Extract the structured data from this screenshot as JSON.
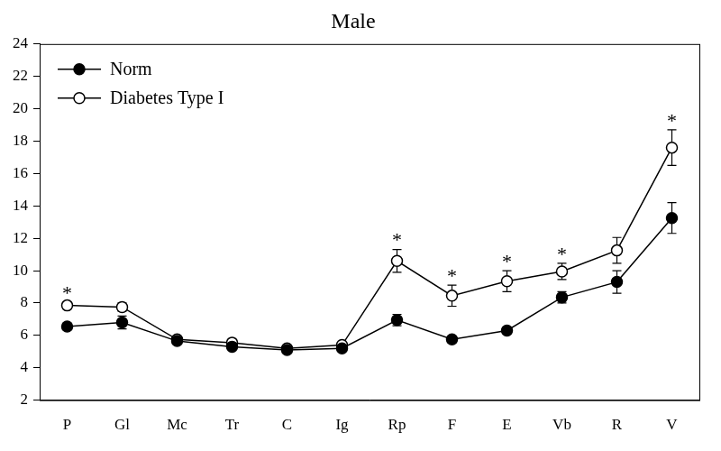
{
  "chart_data": {
    "type": "line",
    "title": "Male",
    "categories": [
      "P",
      "Gl",
      "Mc",
      "Tr",
      "C",
      "Ig",
      "Rp",
      "F",
      "E",
      "Vb",
      "R",
      "V"
    ],
    "series": [
      {
        "name": "Norm",
        "color": "#000000",
        "marker": "filled_circle",
        "values": [
          6.55,
          6.8,
          5.65,
          5.3,
          5.1,
          5.2,
          6.95,
          5.75,
          6.3,
          8.35,
          9.3,
          13.25
        ],
        "errors": [
          0.2,
          0.4,
          0.15,
          0.15,
          0.1,
          0.15,
          0.35,
          0.2,
          0.2,
          0.35,
          0.7,
          0.95
        ]
      },
      {
        "name": "Diabetes Type I",
        "color": "#000000",
        "marker": "open_circle",
        "values": [
          7.85,
          7.75,
          5.75,
          5.55,
          5.2,
          5.4,
          10.6,
          8.45,
          9.35,
          9.95,
          11.25,
          17.6
        ],
        "errors": [
          0.2,
          0.25,
          0.15,
          0.15,
          0.1,
          0.1,
          0.7,
          0.65,
          0.65,
          0.5,
          0.8,
          1.1
        ]
      }
    ],
    "ylim": [
      2,
      24
    ],
    "yticks": [
      2,
      4,
      6,
      8,
      10,
      12,
      14,
      16,
      18,
      20,
      22,
      24
    ],
    "grid": false,
    "legend": "upper left",
    "annotations": [
      {
        "category": "P",
        "text": "*"
      },
      {
        "category": "Rp",
        "text": "*"
      },
      {
        "category": "F",
        "text": "*"
      },
      {
        "category": "E",
        "text": "*"
      },
      {
        "category": "Vb",
        "text": "*"
      },
      {
        "category": "V",
        "text": "*"
      }
    ]
  }
}
